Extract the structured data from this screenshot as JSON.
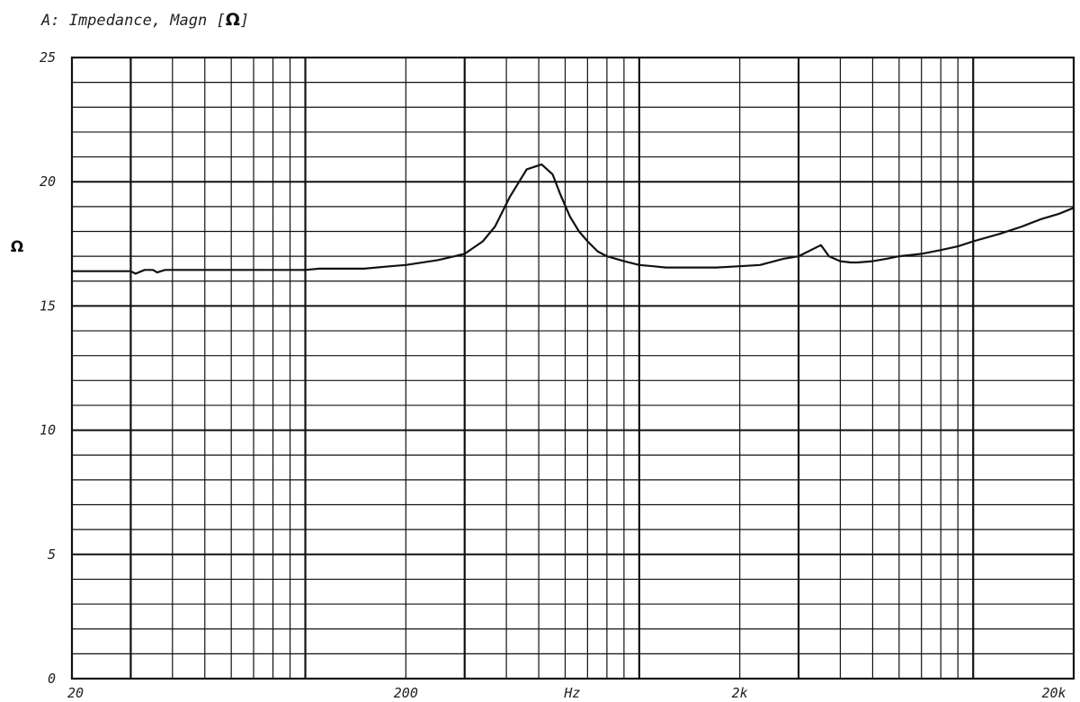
{
  "chart_data": {
    "type": "line",
    "title": "A: Impedance, Magn [",
    "title_unit": "Ω",
    "title_suffix": "]",
    "ylabel": "Ω",
    "xscale": "log",
    "xlim": [
      20,
      20000
    ],
    "ylim": [
      0,
      25
    ],
    "x_tick_labels": [
      {
        "value": 20,
        "label": "20"
      },
      {
        "value": 200,
        "label": "200"
      },
      {
        "value": 630,
        "label": "Hz"
      },
      {
        "value": 2000,
        "label": "2k"
      },
      {
        "value": 20000,
        "label": "20k"
      }
    ],
    "y_tick_labels": [
      {
        "value": 0,
        "label": "0"
      },
      {
        "value": 5,
        "label": "5"
      },
      {
        "value": 10,
        "label": "10"
      },
      {
        "value": 15,
        "label": "15"
      },
      {
        "value": 20,
        "label": "20"
      },
      {
        "value": 25,
        "label": "25"
      }
    ],
    "grid": true,
    "series": [
      {
        "color": "#111111",
        "x": [
          20,
          30,
          31,
          33,
          35,
          36,
          38,
          50,
          100,
          110,
          150,
          180,
          200,
          250,
          300,
          340,
          370,
          410,
          460,
          510,
          550,
          580,
          620,
          660,
          700,
          750,
          800,
          900,
          1000,
          1100,
          1200,
          1400,
          1700,
          2000,
          2300,
          2700,
          3000,
          3500,
          3700,
          4000,
          4300,
          4500,
          5000,
          5500,
          6000,
          7000,
          8000,
          9000,
          10000,
          12000,
          14000,
          16000,
          18000,
          20000
        ],
        "y": [
          16.4,
          16.4,
          16.3,
          16.45,
          16.45,
          16.35,
          16.45,
          16.45,
          16.45,
          16.5,
          16.5,
          16.6,
          16.65,
          16.85,
          17.1,
          17.6,
          18.2,
          19.4,
          20.5,
          20.7,
          20.3,
          19.5,
          18.6,
          18.0,
          17.6,
          17.2,
          17.0,
          16.8,
          16.65,
          16.6,
          16.55,
          16.55,
          16.55,
          16.6,
          16.65,
          16.9,
          17.0,
          17.45,
          17.0,
          16.8,
          16.75,
          16.75,
          16.8,
          16.9,
          17.0,
          17.1,
          17.25,
          17.4,
          17.6,
          17.9,
          18.2,
          18.5,
          18.7,
          18.95
        ]
      }
    ]
  }
}
